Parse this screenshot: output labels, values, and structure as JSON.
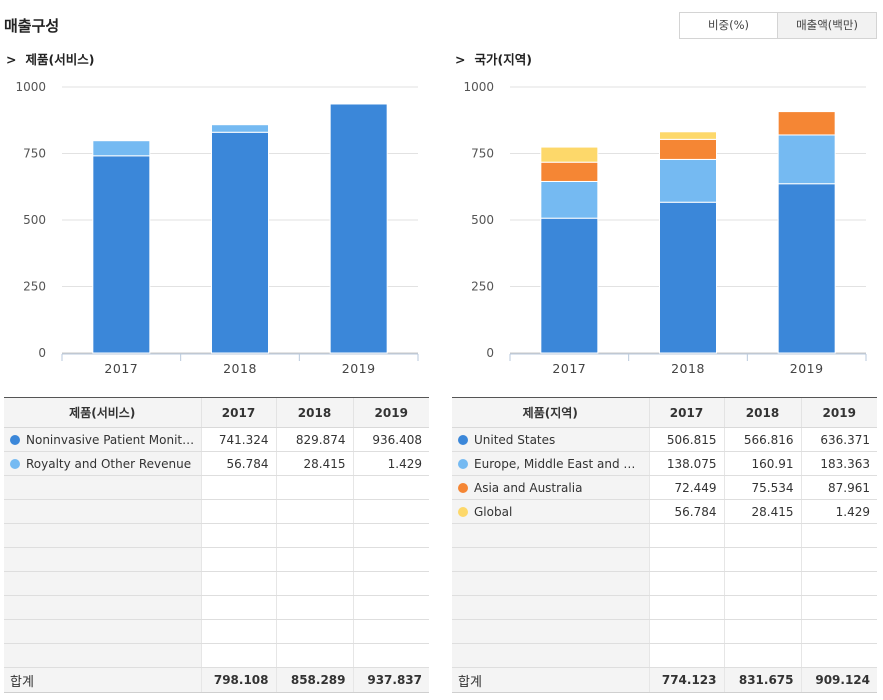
{
  "page": {
    "title": "매출구성"
  },
  "toggle": {
    "ratio_label": "비중(%)",
    "amount_label": "매출액(백만)"
  },
  "left": {
    "section_title": "제품(서비스)",
    "table": {
      "header": [
        "제품(서비스)",
        "2017",
        "2018",
        "2019"
      ],
      "rows": [
        {
          "name": "Noninvasive Patient Monitor...",
          "v": [
            "741.324",
            "829.874",
            "936.408"
          ]
        },
        {
          "name": "Royalty and Other Revenue",
          "v": [
            "56.784",
            "28.415",
            "1.429"
          ]
        }
      ],
      "total": {
        "label": "합계",
        "v": [
          "798.108",
          "858.289",
          "937.837"
        ]
      }
    }
  },
  "right": {
    "section_title": "국가(지역)",
    "table": {
      "header": [
        "제품(지역)",
        "2017",
        "2018",
        "2019"
      ],
      "rows": [
        {
          "name": "United States",
          "v": [
            "506.815",
            "566.816",
            "636.371"
          ]
        },
        {
          "name": "Europe, Middle East and Afri...",
          "v": [
            "138.075",
            "160.91",
            "183.363"
          ]
        },
        {
          "name": "Asia and Australia",
          "v": [
            "72.449",
            "75.534",
            "87.961"
          ]
        },
        {
          "name": "Global",
          "v": [
            "56.784",
            "28.415",
            "1.429"
          ]
        }
      ],
      "total": {
        "label": "합계",
        "v": [
          "774.123",
          "831.675",
          "909.124"
        ]
      }
    }
  },
  "chart_data": [
    {
      "type": "bar",
      "stacked": true,
      "title": "제품(서비스)",
      "categories": [
        "2017",
        "2018",
        "2019"
      ],
      "ylim": [
        0,
        1000
      ],
      "yticks": [
        0,
        250,
        500,
        750,
        1000
      ],
      "grid": true,
      "series": [
        {
          "name": "Noninvasive Patient Monitor...",
          "color": "#3b87d9",
          "values": [
            741.324,
            829.874,
            936.408
          ]
        },
        {
          "name": "Royalty and Other Revenue",
          "color": "#75baf2",
          "values": [
            56.784,
            28.415,
            1.429
          ]
        }
      ]
    },
    {
      "type": "bar",
      "stacked": true,
      "title": "국가(지역)",
      "categories": [
        "2017",
        "2018",
        "2019"
      ],
      "ylim": [
        0,
        1000
      ],
      "yticks": [
        0,
        250,
        500,
        750,
        1000
      ],
      "grid": true,
      "series": [
        {
          "name": "United States",
          "color": "#3b87d9",
          "values": [
            506.815,
            566.816,
            636.371
          ]
        },
        {
          "name": "Europe, Middle East and Afri...",
          "color": "#75baf2",
          "values": [
            138.075,
            160.91,
            183.363
          ]
        },
        {
          "name": "Asia and Australia",
          "color": "#f58634",
          "values": [
            72.449,
            75.534,
            87.961
          ]
        },
        {
          "name": "Global",
          "color": "#fdd86a",
          "values": [
            56.784,
            28.415,
            1.429
          ]
        }
      ]
    }
  ]
}
